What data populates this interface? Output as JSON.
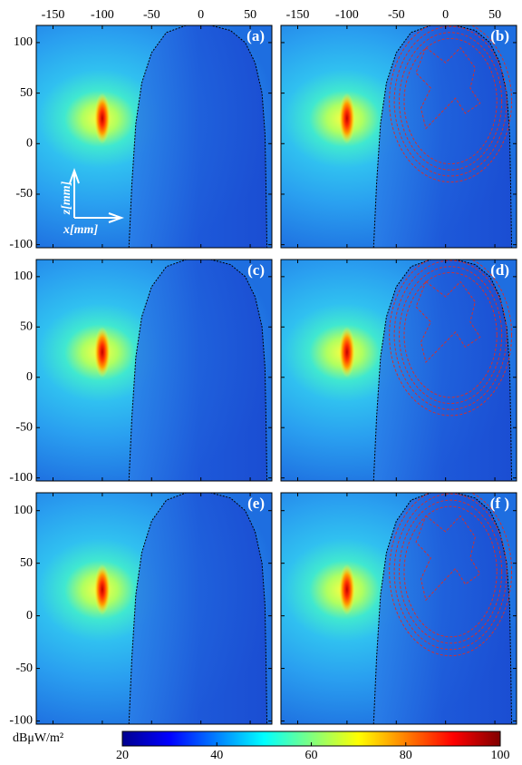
{
  "chart_data": {
    "type": "heatmap",
    "panels": [
      {
        "label": "(a)",
        "contours": false
      },
      {
        "label": "(b)",
        "contours": true
      },
      {
        "label": "(c)",
        "contours": false
      },
      {
        "label": "(d)",
        "contours": true
      },
      {
        "label": "(e)",
        "contours": false
      },
      {
        "label": "(f )",
        "contours": true
      }
    ],
    "xlim": [
      -167,
      72
    ],
    "ylim": [
      -103,
      117
    ],
    "xticks": [
      -150,
      -100,
      -50,
      0,
      50
    ],
    "yticks": [
      100,
      50,
      0,
      -50,
      -100
    ],
    "ylabel": "z[mm]",
    "xlabel": "x[mm]",
    "colorbar": {
      "label": "dBμW/m²",
      "clim": [
        20,
        100
      ],
      "ticks": [
        20,
        40,
        60,
        80,
        100
      ],
      "colormap": "jet"
    }
  }
}
